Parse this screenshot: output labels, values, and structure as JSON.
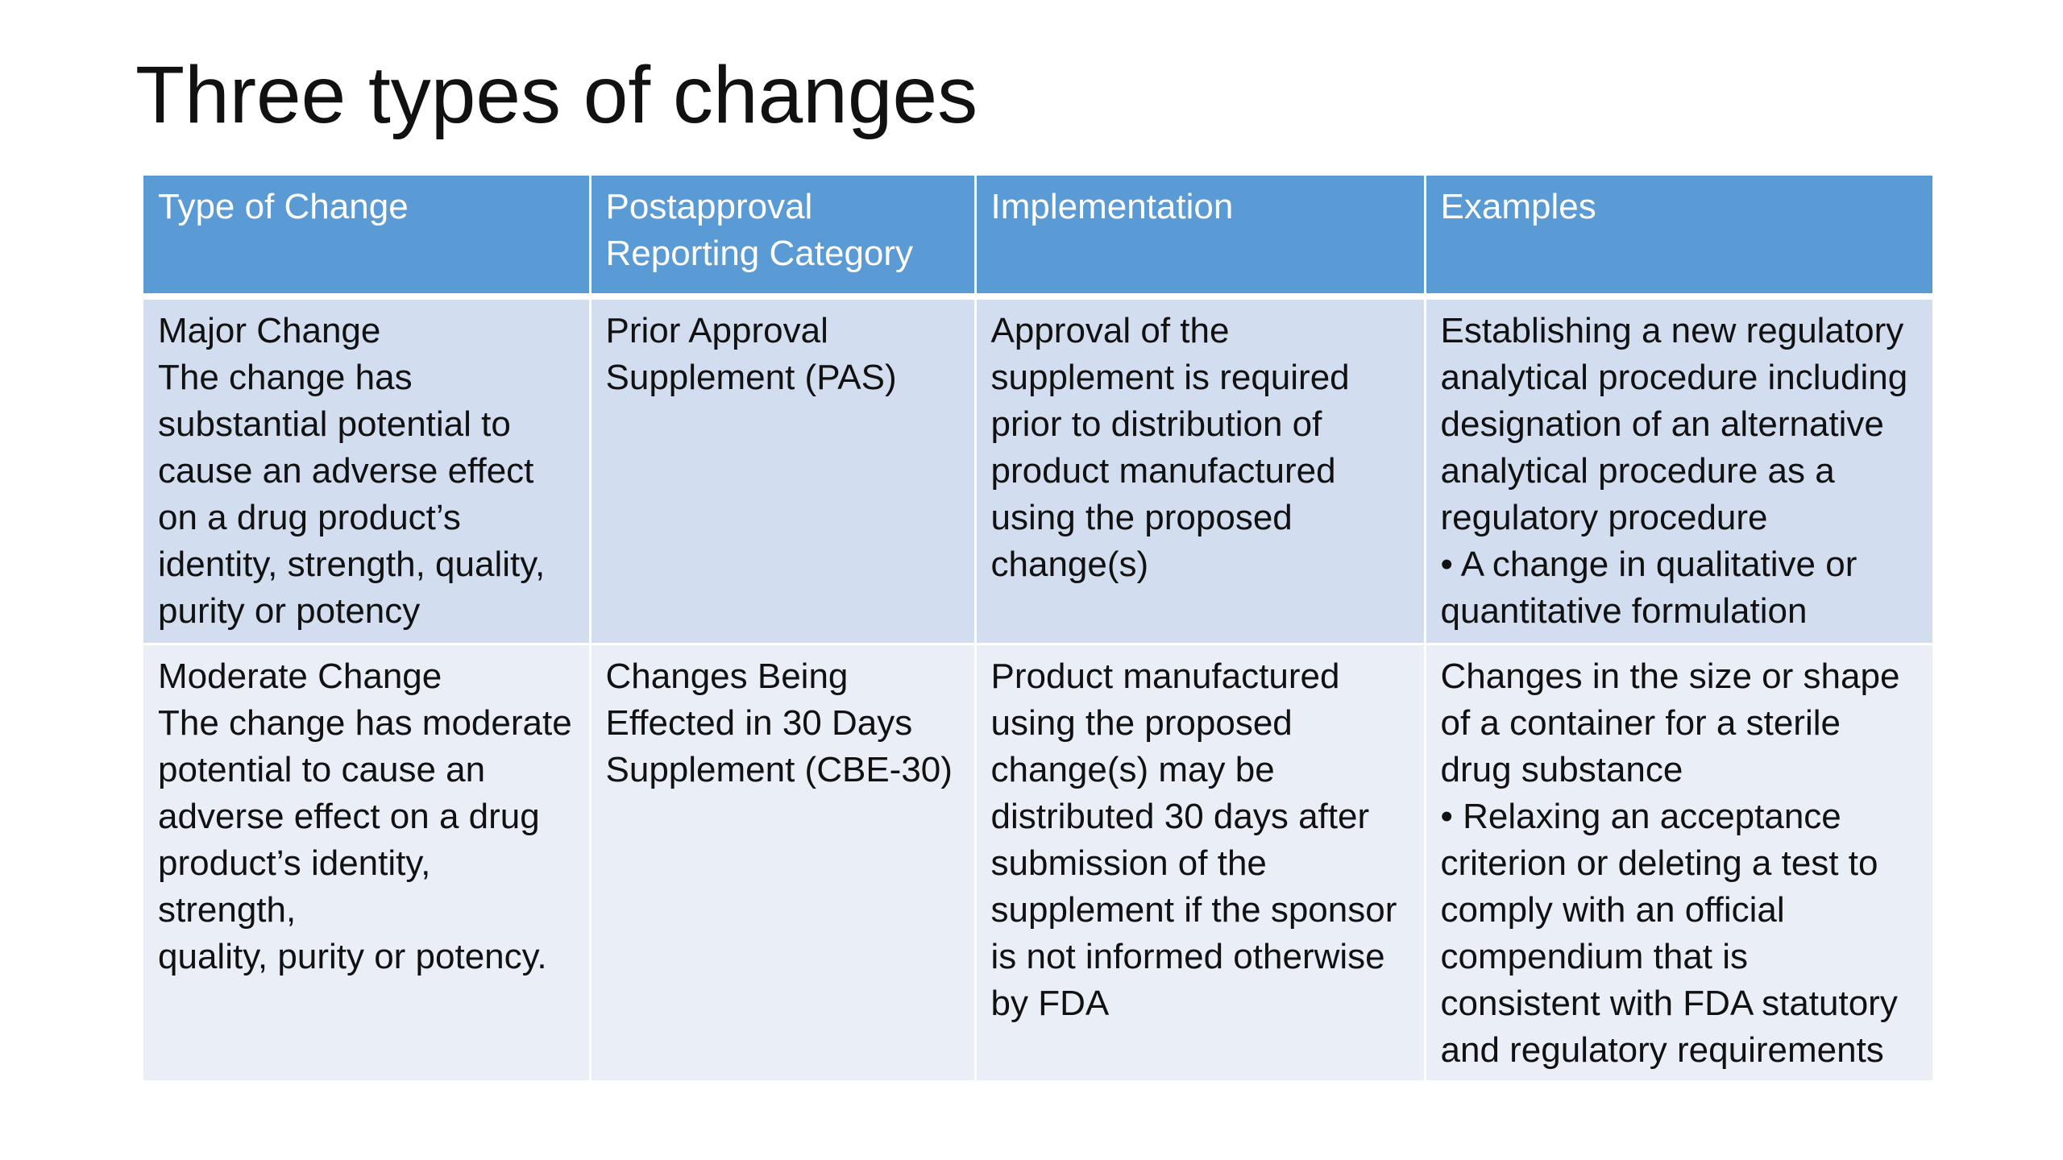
{
  "title": "Three types of changes",
  "table": {
    "headers": [
      [
        "Type of Change"
      ],
      [
        "Postapproval",
        "Reporting Category"
      ],
      [
        "Implementation"
      ],
      [
        "Examples"
      ]
    ],
    "rows": [
      {
        "cells": [
          [
            "Major Change",
            "The change has",
            "substantial potential to",
            "cause an adverse effect",
            "on a drug product’s",
            "identity, strength, quality,",
            "purity or potency"
          ],
          [
            "Prior Approval",
            "Supplement (PAS)"
          ],
          [
            "Approval of the",
            "supplement is required",
            "prior to distribution of",
            "product manufactured",
            "using the proposed",
            "change(s)"
          ],
          [
            "Establishing a new regulatory",
            "analytical procedure including",
            "designation of an alternative",
            "analytical procedure as a",
            "regulatory procedure",
            "• A change in qualitative or",
            "quantitative formulation"
          ]
        ]
      },
      {
        "cells": [
          [
            "Moderate Change",
            "The change has moderate",
            "potential to cause an",
            "adverse effect on a drug",
            "product’s identity,",
            "strength,",
            "quality, purity or potency."
          ],
          [
            "Changes Being",
            "Effected in 30 Days",
            "Supplement (CBE-30)"
          ],
          [
            "Product manufactured",
            "using the proposed",
            "change(s) may be",
            "distributed 30 days after",
            "submission of the",
            "supplement if the sponsor",
            "is not informed otherwise",
            "by FDA"
          ],
          [
            "Changes in the size or shape",
            "of a container for a sterile",
            "drug substance",
            "• Relaxing an acceptance",
            "criterion or deleting a test to",
            "comply with an official",
            "compendium that is",
            "consistent with FDA statutory",
            "and regulatory requirements"
          ]
        ]
      }
    ]
  },
  "colors": {
    "header_bg": "#5b9bd5",
    "row_major_bg": "#d2deef",
    "row_moderate_bg": "#eaeff7"
  }
}
